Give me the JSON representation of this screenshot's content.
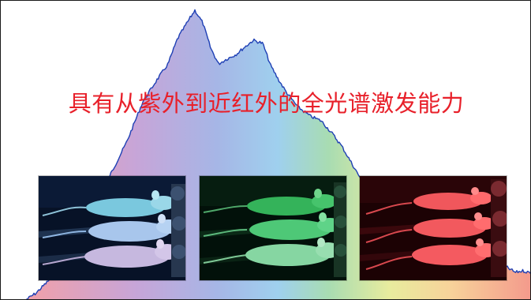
{
  "headline": "具有从紫外到近红外的全光谱激发能力",
  "colors": {
    "headline": "#e8202a",
    "outline": "#1e3fb4",
    "spectrum_stops": [
      "#f2a0a8",
      "#c3a8dc",
      "#9fc4ea",
      "#a8dcb2",
      "#f7eb9c",
      "#f4a592"
    ]
  },
  "panels": [
    {
      "name": "blue-excitation-mice",
      "tint": "#4fb3d2",
      "bg": "#050c1c"
    },
    {
      "name": "green-excitation-mice",
      "tint": "#39d66b",
      "bg": "#030f08"
    },
    {
      "name": "red-excitation-mice",
      "tint": "#ff5a5a",
      "bg": "#200305"
    }
  ]
}
